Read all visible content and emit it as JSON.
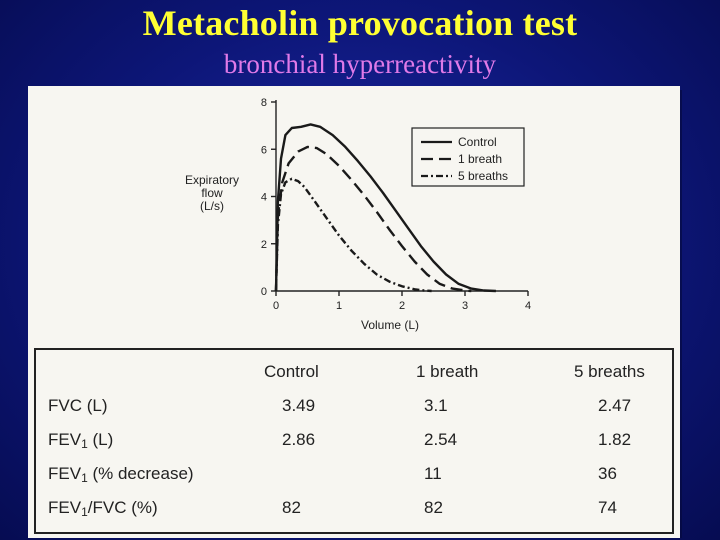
{
  "slide": {
    "title": "Metacholin provocation test",
    "subtitle": "bronchial hyperreactivity",
    "colors": {
      "background": "#0d1678",
      "title": "#ffff33",
      "subtitle": "#e07ae8",
      "panel": "#f7f6f1"
    }
  },
  "chart_data": {
    "type": "line",
    "title": "",
    "xlabel": "Volume (L)",
    "ylabel": "Expiratory flow (L/s)",
    "ylabel_lines": [
      "Expiratory",
      "flow",
      "(L/s)"
    ],
    "xlim": [
      0,
      4
    ],
    "ylim": [
      0,
      8
    ],
    "x_ticks": [
      0,
      1,
      2,
      3,
      4
    ],
    "y_ticks": [
      0,
      2,
      4,
      6,
      8
    ],
    "grid": false,
    "legend_position": "top-right",
    "series": [
      {
        "name": "Control",
        "dash": "solid",
        "x": [
          0,
          0.03,
          0.08,
          0.15,
          0.25,
          0.4,
          0.55,
          0.7,
          0.9,
          1.1,
          1.3,
          1.5,
          1.7,
          1.9,
          2.1,
          2.3,
          2.5,
          2.7,
          2.9,
          3.1,
          3.3,
          3.49
        ],
        "y": [
          0,
          3.8,
          5.6,
          6.6,
          6.9,
          6.95,
          7.05,
          6.95,
          6.6,
          6.1,
          5.5,
          4.85,
          4.15,
          3.4,
          2.65,
          1.9,
          1.25,
          0.7,
          0.3,
          0.1,
          0.02,
          0
        ]
      },
      {
        "name": "1 breath",
        "dash": "dashed",
        "x": [
          0,
          0.03,
          0.1,
          0.2,
          0.35,
          0.5,
          0.65,
          0.8,
          1.0,
          1.2,
          1.4,
          1.6,
          1.8,
          2.0,
          2.2,
          2.4,
          2.6,
          2.8,
          3.0,
          3.1
        ],
        "y": [
          0,
          3.2,
          4.6,
          5.4,
          5.9,
          6.1,
          6.05,
          5.8,
          5.3,
          4.7,
          4.05,
          3.35,
          2.6,
          1.9,
          1.25,
          0.7,
          0.3,
          0.1,
          0.02,
          0
        ]
      },
      {
        "name": "5 breaths",
        "dash": "dash-dot",
        "x": [
          0,
          0.03,
          0.08,
          0.15,
          0.25,
          0.35,
          0.45,
          0.6,
          0.8,
          1.0,
          1.2,
          1.4,
          1.6,
          1.8,
          2.0,
          2.2,
          2.35,
          2.47
        ],
        "y": [
          0,
          2.8,
          4.1,
          4.6,
          4.75,
          4.65,
          4.4,
          3.85,
          3.1,
          2.35,
          1.7,
          1.15,
          0.7,
          0.4,
          0.2,
          0.07,
          0.02,
          0
        ]
      }
    ]
  },
  "table": {
    "columns": [
      "Control",
      "1 breath",
      "5 breaths"
    ],
    "rows": [
      {
        "label_main": "FVC (L)",
        "label_sub": "",
        "label_tail": "",
        "values": [
          "3.49",
          "3.1",
          "2.47"
        ]
      },
      {
        "label_main": "FEV",
        "label_sub": "1",
        "label_tail": " (L)",
        "values": [
          "2.86",
          "2.54",
          "1.82"
        ]
      },
      {
        "label_main": "FEV",
        "label_sub": "1",
        "label_tail": " (% decrease)",
        "values": [
          "",
          "11",
          "36"
        ]
      },
      {
        "label_main": "FEV",
        "label_sub": "1",
        "label_tail": "/FVC (%)",
        "values": [
          "82",
          "82",
          "74"
        ]
      }
    ]
  }
}
